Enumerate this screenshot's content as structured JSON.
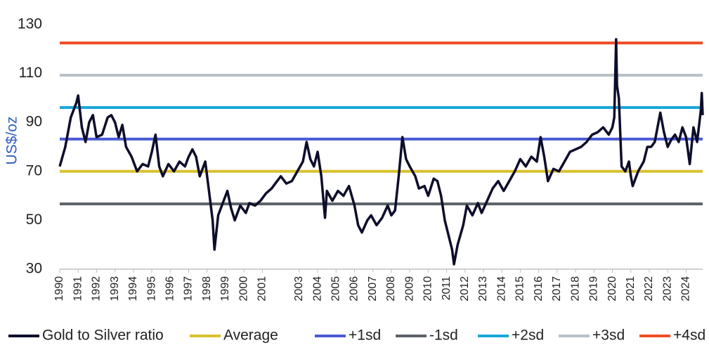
{
  "chart_data": {
    "type": "line",
    "y_label": "US$/oz",
    "ylim": [
      30,
      130
    ],
    "yticks": [
      30,
      50,
      70,
      90,
      110,
      130
    ],
    "xlim": [
      1990,
      2024.9
    ],
    "xticks": [
      1990,
      1991,
      1992,
      1993,
      1994,
      1995,
      1996,
      1997,
      1998,
      1999,
      2000,
      2001,
      2003,
      2004,
      2005,
      2006,
      2007,
      2008,
      2009,
      2010,
      2011,
      2012,
      2013,
      2014,
      2015,
      2016,
      2017,
      2018,
      2019,
      2020,
      2021,
      2022,
      2023,
      2024
    ],
    "x": [
      1990,
      1990.3,
      1990.6,
      1990.9,
      1991.0,
      1991.2,
      1991.4,
      1991.6,
      1991.8,
      1992.0,
      1992.3,
      1992.6,
      1992.8,
      1993.0,
      1993.2,
      1993.4,
      1993.6,
      1993.9,
      1994.2,
      1994.5,
      1994.8,
      1995.0,
      1995.2,
      1995.4,
      1995.6,
      1995.9,
      1996.2,
      1996.5,
      1996.8,
      1997.0,
      1997.2,
      1997.4,
      1997.6,
      1997.9,
      1998.1,
      1998.3,
      1998.4,
      1998.6,
      1998.9,
      1999.1,
      1999.3,
      1999.5,
      1999.8,
      2000.1,
      2000.3,
      2000.6,
      2000.9,
      2001.2,
      2001.5,
      2001.8,
      2002.0,
      2002.3,
      2002.6,
      2002.9,
      2003.2,
      2003.4,
      2003.6,
      2003.8,
      2004.0,
      2004.2,
      2004.4,
      2004.5,
      2004.8,
      2005.1,
      2005.4,
      2005.7,
      2006.0,
      2006.2,
      2006.4,
      2006.7,
      2006.9,
      2007.2,
      2007.5,
      2007.8,
      2008.0,
      2008.2,
      2008.4,
      2008.6,
      2008.8,
      2009.0,
      2009.3,
      2009.5,
      2009.8,
      2010.0,
      2010.3,
      2010.5,
      2010.7,
      2010.9,
      2011.1,
      2011.3,
      2011.4,
      2011.6,
      2011.9,
      2012.1,
      2012.4,
      2012.7,
      2012.9,
      2013.2,
      2013.5,
      2013.8,
      2014.1,
      2014.4,
      2014.7,
      2015.0,
      2015.3,
      2015.6,
      2015.9,
      2016.1,
      2016.3,
      2016.5,
      2016.8,
      2017.1,
      2017.4,
      2017.7,
      2018.0,
      2018.3,
      2018.6,
      2018.9,
      2019.2,
      2019.5,
      2019.8,
      2020.0,
      2020.1,
      2020.2,
      2020.25,
      2020.35,
      2020.5,
      2020.7,
      2020.9,
      2021.0,
      2021.1,
      2021.4,
      2021.7,
      2021.9,
      2022.1,
      2022.3,
      2022.6,
      2022.8,
      2023.0,
      2023.2,
      2023.4,
      2023.6,
      2023.8,
      2024.0,
      2024.2,
      2024.4,
      2024.6,
      2024.8,
      2024.85,
      2024.9
    ],
    "series": [
      {
        "name": "Gold to Silver ratio",
        "color": "#0d0d2b",
        "values": [
          72,
          80,
          92,
          98,
          101,
          88,
          82,
          90,
          93,
          84,
          85,
          92,
          93,
          90,
          84,
          89,
          80,
          76,
          70,
          73,
          72,
          78,
          85,
          72,
          68,
          73,
          70,
          74,
          72,
          76,
          79,
          76,
          68,
          74,
          62,
          50,
          38,
          52,
          58,
          62,
          55,
          50,
          56,
          53,
          57,
          56,
          58,
          61,
          63,
          66,
          68,
          65,
          66,
          70,
          74,
          82,
          75,
          72,
          78,
          68,
          51,
          62,
          58,
          62,
          60,
          64,
          56,
          48,
          45,
          50,
          52,
          48,
          51,
          56,
          52,
          54,
          68,
          84,
          75,
          72,
          68,
          63,
          64,
          60,
          67,
          66,
          60,
          50,
          44,
          38,
          32,
          40,
          48,
          56,
          52,
          57,
          53,
          58,
          63,
          66,
          62,
          66,
          70,
          75,
          72,
          76,
          74,
          84,
          76,
          66,
          71,
          70,
          74,
          78,
          79,
          80,
          82,
          85,
          86,
          88,
          85,
          88,
          92,
          124,
          105,
          100,
          72,
          70,
          74,
          68,
          64,
          70,
          74,
          80,
          80,
          82,
          94,
          86,
          80,
          83,
          85,
          82,
          88,
          84,
          73,
          88,
          82,
          95,
          102,
          93
        ]
      }
    ],
    "reference_lines": [
      {
        "name": "Average",
        "color": "#d9c12f",
        "value": 70.0
      },
      {
        "name": "+1sd",
        "color": "#4a5bd4",
        "value": 83.2
      },
      {
        "name": "-1sd",
        "color": "#5b6167",
        "value": 56.7
      },
      {
        "name": "+2sd",
        "color": "#1aa8d8",
        "value": 96.1
      },
      {
        "name": "+3sd",
        "color": "#b9c1c8",
        "value": 109.3
      },
      {
        "name": "+4sd",
        "color": "#ef4e24",
        "value": 122.5
      }
    ]
  }
}
